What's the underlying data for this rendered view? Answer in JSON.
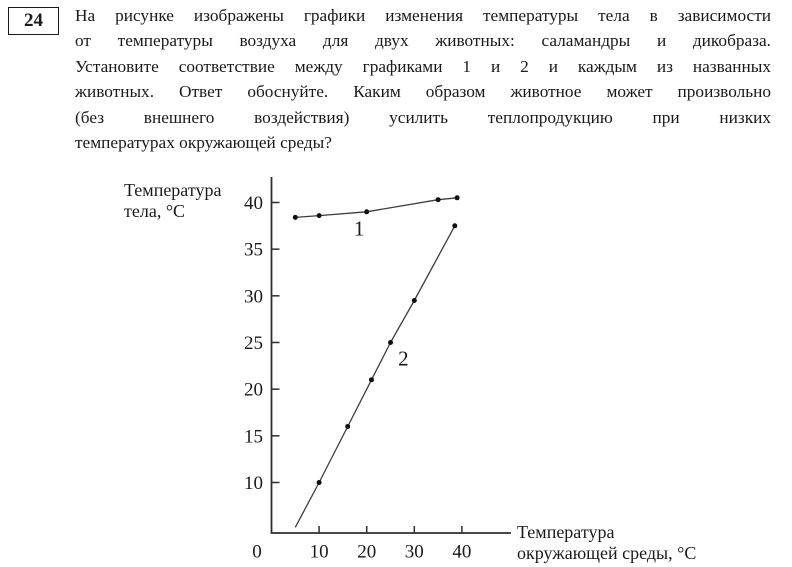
{
  "page": {
    "background": "#ffffff",
    "text_color": "#1a1a1a"
  },
  "question": {
    "number": "24",
    "lines": [
      "На рисунке изображены графики изменения температуры тела в зависимости",
      "от температуры воздуха для двух животных: саламандры и дикобраза.",
      "Установите соответствие между графиками 1 и 2 и каждым из названных",
      "животных. Ответ обоснуйте. Каким образом животное может произвольно",
      "(без внешнего воздействия) усилить теплопродукцию при низких",
      "температурах окружающей среды?"
    ]
  },
  "chart_data": {
    "type": "line",
    "title": "",
    "ylabel": "Температура тела, °C",
    "xlabel": "Температура окружающей среды, °C",
    "ylabel_lines": [
      "Температура",
      "тела, °C"
    ],
    "xlabel_lines": [
      "Температура",
      "окружающей среды, °C"
    ],
    "x_ticks": [
      0,
      10,
      20,
      30,
      40
    ],
    "y_ticks": [
      10,
      15,
      20,
      25,
      30,
      35,
      40
    ],
    "xlim": [
      0,
      50
    ],
    "ylim": [
      4.5,
      42.5
    ],
    "grid": false,
    "legend_position": "inline-labels",
    "axis_color": "#2e2e2e",
    "line_color": "#3d3d3d",
    "marker_color": "#111111",
    "text_color": "#1a1a1a",
    "series": [
      {
        "name": "1",
        "label": "1",
        "label_pos": [
          18.4,
          37.2
        ],
        "points": [
          [
            5,
            38.4
          ],
          [
            10,
            38.6
          ],
          [
            20,
            39
          ],
          [
            35,
            40.3
          ],
          [
            39,
            40.5
          ]
        ]
      },
      {
        "name": "2",
        "label": "2",
        "label_pos": [
          27.7,
          23.3
        ],
        "line_start": [
          5,
          5.2
        ],
        "points": [
          [
            10,
            10
          ],
          [
            16,
            16
          ],
          [
            21,
            21
          ],
          [
            25,
            25
          ],
          [
            30,
            29.5
          ],
          [
            38.5,
            37.5
          ]
        ]
      }
    ]
  }
}
